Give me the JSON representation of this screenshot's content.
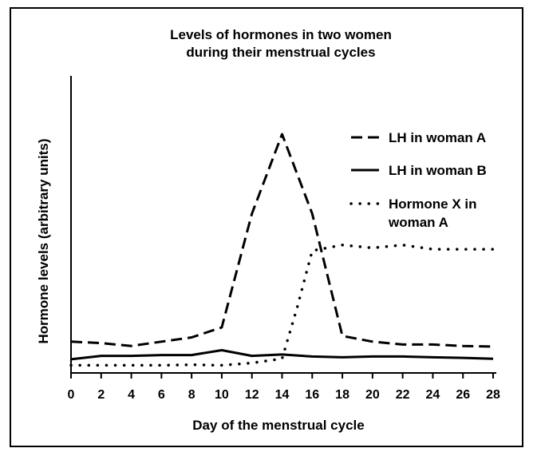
{
  "chart_data": {
    "type": "line",
    "title_line1": "Levels of hormones in two women",
    "title_line2": "during their menstrual cycles",
    "xlabel": "Day of the menstrual cycle",
    "ylabel": "Hormone levels (arbitrary units)",
    "xlim": [
      0,
      28
    ],
    "ylim": [
      0,
      100
    ],
    "x_ticks": [
      "0",
      "2",
      "4",
      "6",
      "8",
      "10",
      "12",
      "14",
      "16",
      "18",
      "20",
      "22",
      "24",
      "26",
      "28"
    ],
    "y_ticks_shown": false,
    "legend_position": "top-right",
    "series": [
      {
        "name": "LH in woman A",
        "style": "dashed",
        "points": [
          [
            0,
            11
          ],
          [
            2,
            10.5
          ],
          [
            4,
            9.5
          ],
          [
            6,
            11
          ],
          [
            8,
            12.5
          ],
          [
            10,
            16
          ],
          [
            12,
            56
          ],
          [
            14,
            84
          ],
          [
            16,
            56
          ],
          [
            18,
            13
          ],
          [
            20,
            11
          ],
          [
            22,
            10
          ],
          [
            24,
            10
          ],
          [
            26,
            9.5
          ],
          [
            28,
            9.3
          ]
        ]
      },
      {
        "name": "LH in woman B",
        "style": "solid",
        "points": [
          [
            0,
            4.8
          ],
          [
            2,
            6
          ],
          [
            4,
            6
          ],
          [
            6,
            6.3
          ],
          [
            8,
            6.3
          ],
          [
            10,
            8
          ],
          [
            12,
            6
          ],
          [
            14,
            6.5
          ],
          [
            16,
            5.8
          ],
          [
            18,
            5.5
          ],
          [
            20,
            5.8
          ],
          [
            22,
            5.8
          ],
          [
            24,
            5.5
          ],
          [
            26,
            5.3
          ],
          [
            28,
            5
          ]
        ]
      },
      {
        "name_line1": "Hormone X in",
        "name_line2": "woman A",
        "style": "dotted",
        "points": [
          [
            0,
            2.7
          ],
          [
            2,
            2.7
          ],
          [
            4,
            2.7
          ],
          [
            6,
            2.7
          ],
          [
            8,
            2.9
          ],
          [
            10,
            2.7
          ],
          [
            12,
            3.5
          ],
          [
            14,
            5
          ],
          [
            15,
            23
          ],
          [
            16,
            43
          ],
          [
            18,
            45
          ],
          [
            20,
            44
          ],
          [
            22,
            45
          ],
          [
            24,
            43.5
          ],
          [
            26,
            43.5
          ],
          [
            28,
            43.5
          ]
        ]
      }
    ]
  }
}
